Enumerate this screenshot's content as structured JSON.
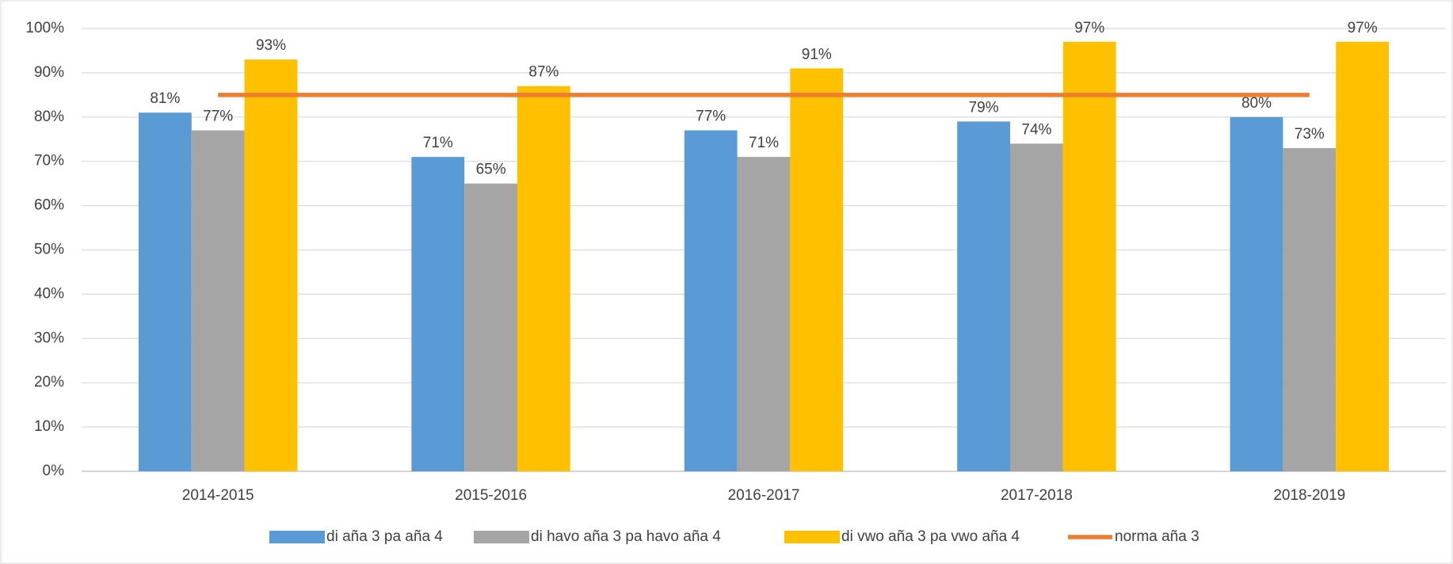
{
  "chart_data": {
    "type": "bar",
    "categories": [
      "2014-2015",
      "2015-2016",
      "2016-2017",
      "2017-2018",
      "2018-2019"
    ],
    "series": [
      {
        "name": "di aña 3 pa aña 4",
        "color": "#5b9bd5",
        "values": [
          81,
          71,
          77,
          79,
          80
        ],
        "value_labels": [
          "81%",
          "71%",
          "77%",
          "79%",
          "80%"
        ]
      },
      {
        "name": "di havo aña 3 pa havo aña 4",
        "color": "#a5a5a5",
        "values": [
          77,
          65,
          71,
          74,
          73
        ],
        "value_labels": [
          "77%",
          "65%",
          "71%",
          "74%",
          "73%"
        ]
      },
      {
        "name": "di vwo aña 3 pa vwo aña 4",
        "color": "#ffc000",
        "values": [
          93,
          87,
          91,
          97,
          97
        ],
        "value_labels": [
          "93%",
          "87%",
          "91%",
          "97%",
          "97%"
        ]
      },
      {
        "name": "norma aña 3",
        "color": "#ed7d31",
        "type": "line",
        "values": [
          85,
          85,
          85,
          85,
          85
        ]
      }
    ],
    "ylim": [
      0,
      100
    ],
    "yticks": [
      {
        "value": 0,
        "label": "0%"
      },
      {
        "value": 10,
        "label": "10%"
      },
      {
        "value": 20,
        "label": "20%"
      },
      {
        "value": 30,
        "label": "30%"
      },
      {
        "value": 40,
        "label": "40%"
      },
      {
        "value": 50,
        "label": "50%"
      },
      {
        "value": 60,
        "label": "60%"
      },
      {
        "value": 70,
        "label": "70%"
      },
      {
        "value": 80,
        "label": "80%"
      },
      {
        "value": 90,
        "label": "90%"
      },
      {
        "value": 100,
        "label": "100%"
      }
    ],
    "grid": true,
    "legend": "bottom"
  }
}
